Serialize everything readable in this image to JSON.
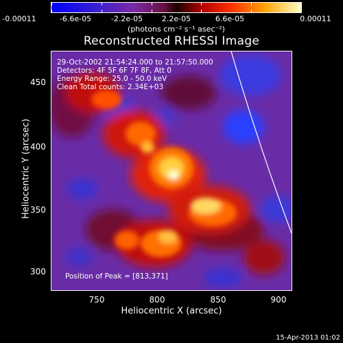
{
  "colorbar": {
    "ticks": [
      "-0.00011",
      "-6.6e-05",
      "-2.2e-05",
      "2.2e-05",
      "6.6e-05",
      "0.00011"
    ],
    "units": "(photons cm⁻² s⁻¹ asec⁻²)"
  },
  "title": "Reconstructed RHESSI Image",
  "annotations": {
    "time_range": "29-Oct-2002 21:54:24.000 to 21:57:50.000",
    "detectors": "Detectors: 4F 5F 6F 7F 8F, Att 0",
    "energy": "Energy Range: 25.0 - 50.0 keV",
    "clean": "Clean    Total counts: 2.34E+03",
    "peak": "Position of Peak = [813,371]"
  },
  "axes": {
    "xlabel": "Heliocentric X (arcsec)",
    "ylabel": "Heliocentric Y (arcsec)",
    "xticks": [
      "750",
      "800",
      "850",
      "900"
    ],
    "yticks": [
      "450",
      "400",
      "350",
      "300"
    ]
  },
  "footer": {
    "timestamp": "15-Apr-2013 01:02"
  }
}
